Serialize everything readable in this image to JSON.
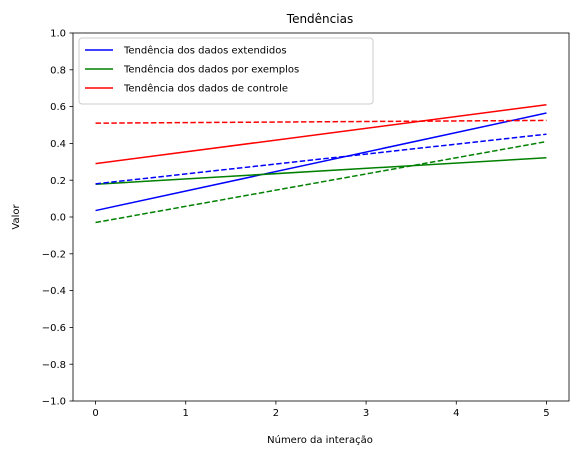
{
  "chart_data": {
    "type": "line",
    "title": "Tendências",
    "xlabel": "Número da interação",
    "ylabel": "Valor",
    "xlim": [
      -0.25,
      5.25
    ],
    "ylim": [
      -1.0,
      1.0
    ],
    "xticks": [
      0,
      1,
      2,
      3,
      4,
      5
    ],
    "xtick_labels": [
      "0",
      "1",
      "2",
      "3",
      "4",
      "5"
    ],
    "yticks": [
      -1.0,
      -0.8,
      -0.6,
      -0.4,
      -0.2,
      0.0,
      0.2,
      0.4,
      0.6,
      0.8,
      1.0
    ],
    "ytick_labels": [
      "−1.0",
      "−0.8",
      "−0.6",
      "−0.4",
      "−0.2",
      "0.0",
      "0.2",
      "0.4",
      "0.6",
      "0.8",
      "1.0"
    ],
    "grid": false,
    "legend_position": "top-left",
    "series": [
      {
        "name": "Tendência dos dados extendidos",
        "color": "#0000ff",
        "style": "solid",
        "x": [
          0,
          5
        ],
        "y": [
          0.035,
          0.565
        ]
      },
      {
        "name": "Tendência dos dados por exemplos",
        "color": "#008000",
        "style": "solid",
        "x": [
          0,
          5
        ],
        "y": [
          0.178,
          0.322
        ]
      },
      {
        "name": "Tendência dos dados de controle",
        "color": "#ff0000",
        "style": "solid",
        "x": [
          0,
          5
        ],
        "y": [
          0.29,
          0.61
        ]
      },
      {
        "color": "#0000ff",
        "style": "dashed",
        "x": [
          0,
          5
        ],
        "y": [
          0.18,
          0.45
        ]
      },
      {
        "color": "#008000",
        "style": "dashed",
        "x": [
          0,
          5
        ],
        "y": [
          -0.03,
          0.41
        ]
      },
      {
        "color": "#ff0000",
        "style": "dashed",
        "x": [
          0,
          5
        ],
        "y": [
          0.51,
          0.525
        ]
      }
    ]
  }
}
